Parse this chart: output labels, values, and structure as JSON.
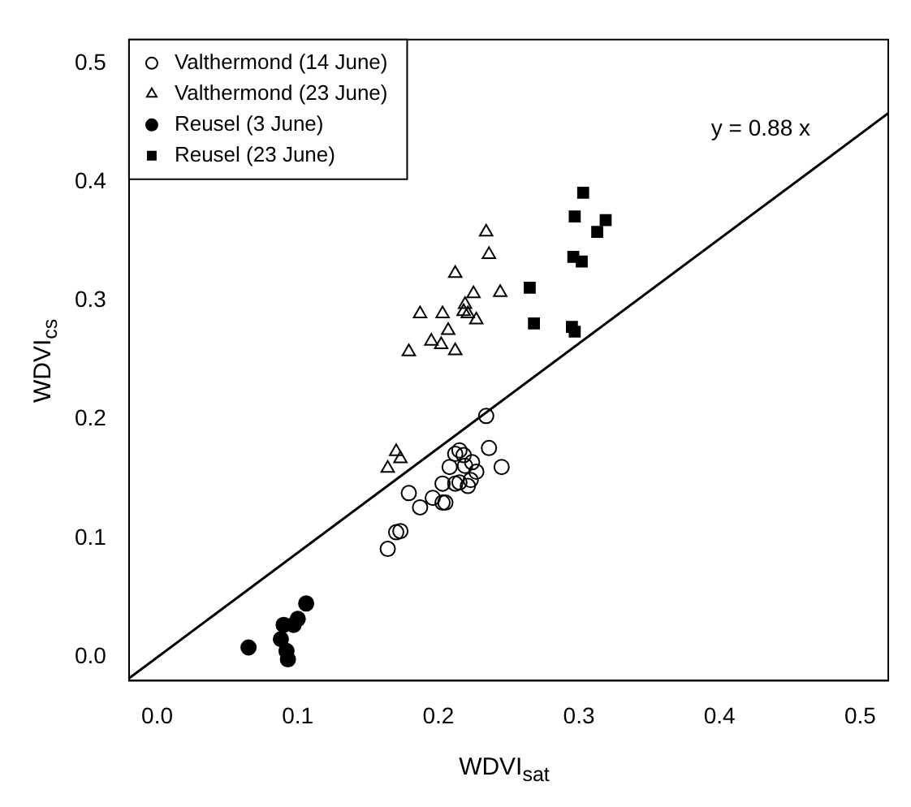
{
  "chart_data": {
    "type": "scatter",
    "xlabel": "WDVI$_{sat}$",
    "ylabel": "WDVI$_{cs}$",
    "xlim": [
      -0.02,
      0.52
    ],
    "ylim": [
      -0.02,
      0.52
    ],
    "xticks": [
      {
        "value": 0,
        "label": "0.0"
      },
      0.1,
      0.2,
      0.3,
      0.4,
      0.5
    ],
    "yticks": [
      {
        "value": 0,
        "label": "0.0"
      },
      0.1,
      0.2,
      0.3,
      0.4,
      0.5
    ],
    "grid": false,
    "legend": "top left",
    "annotations": [
      "y = 0.88 x"
    ],
    "series": [
      {
        "name": "Valthermond (14 June)",
        "color": "#000000",
        "marker": "circle-open",
        "x": [
          0.234,
          0.236,
          0.245,
          0.215,
          0.212,
          0.218,
          0.224,
          0.208,
          0.219,
          0.227,
          0.215,
          0.223,
          0.221,
          0.203,
          0.212,
          0.196,
          0.203,
          0.205,
          0.179,
          0.187,
          0.17,
          0.173,
          0.164
        ],
        "values": [
          0.203,
          0.176,
          0.16,
          0.174,
          0.171,
          0.17,
          0.164,
          0.16,
          0.161,
          0.156,
          0.147,
          0.149,
          0.144,
          0.146,
          0.146,
          0.134,
          0.13,
          0.13,
          0.138,
          0.126,
          0.105,
          0.106,
          0.091
        ]
      },
      {
        "name": "Valthermond (23 June)",
        "color": "#000000",
        "marker": "triangle-open",
        "x": [
          0.234,
          0.236,
          0.212,
          0.244,
          0.225,
          0.219,
          0.218,
          0.221,
          0.187,
          0.203,
          0.227,
          0.207,
          0.195,
          0.202,
          0.212,
          0.179,
          0.17,
          0.173,
          0.164
        ],
        "values": [
          0.358,
          0.339,
          0.323,
          0.307,
          0.306,
          0.297,
          0.291,
          0.289,
          0.289,
          0.289,
          0.284,
          0.275,
          0.266,
          0.263,
          0.258,
          0.257,
          0.173,
          0.167,
          0.159
        ]
      },
      {
        "name": "Reusel (3 June)",
        "color": "#000000",
        "marker": "circle",
        "x": [
          0.065,
          0.085,
          0.088,
          0.09,
          0.092,
          0.093,
          0.097,
          0.1,
          0.106
        ],
        "values": [
          0.008,
          null,
          0.015,
          0.027,
          0.005,
          -0.002,
          0.027,
          0.032,
          0.045
        ]
      },
      {
        "name": "Reusel (23 June)",
        "color": "#000000",
        "marker": "square",
        "x": [
          0.303,
          0.296,
          0.302,
          0.319,
          0.313,
          0.297,
          0.265,
          0.268,
          0.295,
          0.297
        ],
        "values": [
          0.391,
          0.337,
          0.333,
          0.368,
          0.358,
          0.371,
          0.311,
          0.281,
          0.278,
          0.274
        ]
      },
      {
        "type": "line",
        "color": "#000000",
        "line_style": "solid",
        "x": [
          -0.02,
          0.52
        ],
        "values": [
          -0.018,
          0.458
        ]
      }
    ]
  }
}
